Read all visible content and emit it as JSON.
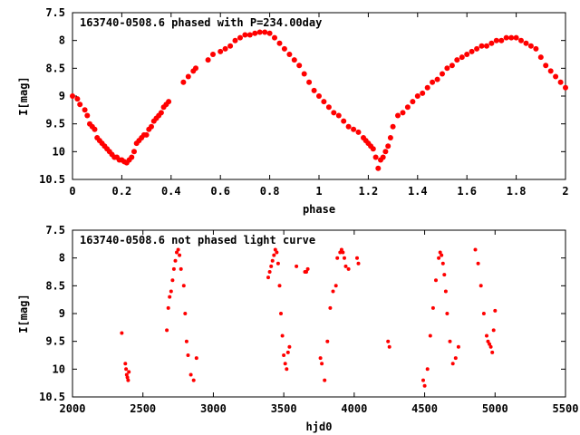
{
  "chart_data": [
    {
      "type": "scatter",
      "title": "163740-0508.6 phased with P=234.00day",
      "xlabel": "phase",
      "ylabel": "I[mag]",
      "xlim": [
        0,
        2
      ],
      "ylim": [
        10.5,
        7.5
      ],
      "y_inverted": true,
      "xticks": [
        "0",
        "0.2",
        "0.4",
        "0.6",
        "0.8",
        "1",
        "1.2",
        "1.4",
        "1.6",
        "1.8",
        "2"
      ],
      "yticks": [
        "7.5",
        "8",
        "8.5",
        "9",
        "9.5",
        "10",
        "10.5"
      ],
      "grid": false,
      "series": [
        {
          "color": "#ff0000",
          "x": [
            0.0,
            0.02,
            0.03,
            0.05,
            0.06,
            0.07,
            0.08,
            0.09,
            0.1,
            0.11,
            0.12,
            0.13,
            0.14,
            0.15,
            0.16,
            0.17,
            0.18,
            0.19,
            0.2,
            0.21,
            0.22,
            0.23,
            0.24,
            0.25,
            0.26,
            0.27,
            0.28,
            0.29,
            0.3,
            0.31,
            0.32,
            0.33,
            0.34,
            0.35,
            0.36,
            0.37,
            0.38,
            0.39,
            0.45,
            0.47,
            0.49,
            0.5,
            0.55,
            0.57,
            0.6,
            0.62,
            0.64,
            0.66,
            0.68,
            0.7,
            0.72,
            0.74,
            0.76,
            0.78,
            0.8,
            0.82,
            0.84,
            0.86,
            0.88,
            0.9,
            0.92,
            0.94,
            0.96,
            0.98,
            1.0,
            1.02,
            1.04,
            1.06,
            1.08,
            1.1,
            1.12,
            1.14,
            1.16,
            1.18,
            1.19,
            1.2,
            1.21,
            1.22,
            1.23,
            1.24,
            1.25,
            1.26,
            1.27,
            1.28,
            1.29,
            1.3,
            1.32,
            1.34,
            1.36,
            1.38,
            1.4,
            1.42,
            1.44,
            1.46,
            1.48,
            1.5,
            1.52,
            1.54,
            1.56,
            1.58,
            1.6,
            1.62,
            1.64,
            1.66,
            1.68,
            1.7,
            1.72,
            1.74,
            1.76,
            1.78,
            1.8,
            1.82,
            1.84,
            1.86,
            1.88,
            1.9,
            1.92,
            1.94,
            1.96,
            1.98,
            2.0
          ],
          "y": [
            9.0,
            9.05,
            9.15,
            9.25,
            9.35,
            9.5,
            9.55,
            9.6,
            9.75,
            9.8,
            9.85,
            9.9,
            9.95,
            10.0,
            10.05,
            10.1,
            10.1,
            10.15,
            10.15,
            10.18,
            10.2,
            10.15,
            10.1,
            10.0,
            9.85,
            9.8,
            9.75,
            9.7,
            9.7,
            9.6,
            9.55,
            9.45,
            9.4,
            9.35,
            9.3,
            9.2,
            9.15,
            9.1,
            8.75,
            8.65,
            8.55,
            8.5,
            8.35,
            8.25,
            8.2,
            8.15,
            8.1,
            8.0,
            7.95,
            7.9,
            7.9,
            7.87,
            7.85,
            7.85,
            7.87,
            7.95,
            8.05,
            8.15,
            8.25,
            8.35,
            8.45,
            8.6,
            8.75,
            8.9,
            9.0,
            9.1,
            9.2,
            9.3,
            9.35,
            9.45,
            9.55,
            9.6,
            9.65,
            9.75,
            9.8,
            9.85,
            9.9,
            9.95,
            10.1,
            10.3,
            10.15,
            10.1,
            10.0,
            9.9,
            9.75,
            9.55,
            9.35,
            9.3,
            9.2,
            9.1,
            9.0,
            8.95,
            8.85,
            8.75,
            8.7,
            8.6,
            8.5,
            8.45,
            8.35,
            8.3,
            8.25,
            8.2,
            8.15,
            8.1,
            8.1,
            8.05,
            8.0,
            8.0,
            7.95,
            7.95,
            7.95,
            8.0,
            8.05,
            8.1,
            8.15,
            8.3,
            8.45,
            8.55,
            8.65,
            8.75,
            8.85
          ]
        }
      ]
    },
    {
      "type": "scatter",
      "title": "163740-0508.6 not phased light curve",
      "xlabel": "hjd0",
      "ylabel": "I[mag]",
      "xlim": [
        2000,
        5500
      ],
      "ylim": [
        10.5,
        7.5
      ],
      "y_inverted": true,
      "xticks": [
        "2000",
        "2500",
        "3000",
        "3500",
        "4000",
        "4500",
        "5000",
        "5500"
      ],
      "yticks": [
        "7.5",
        "8",
        "8.5",
        "9",
        "9.5",
        "10",
        "10.5"
      ],
      "grid": false,
      "series": [
        {
          "color": "#ff0000",
          "x": [
            2350,
            2375,
            2380,
            2385,
            2390,
            2395,
            2400,
            2670,
            2680,
            2690,
            2700,
            2710,
            2720,
            2730,
            2740,
            2750,
            2760,
            2770,
            2790,
            2800,
            2810,
            2820,
            2840,
            2860,
            2880,
            3390,
            3400,
            3410,
            3420,
            3430,
            3440,
            3450,
            3460,
            3470,
            3480,
            3490,
            3500,
            3510,
            3520,
            3530,
            3540,
            3590,
            3650,
            3660,
            3670,
            3760,
            3770,
            3790,
            3810,
            3830,
            3850,
            3870,
            3880,
            3900,
            3910,
            3920,
            3930,
            3940,
            3960,
            4020,
            4030,
            4240,
            4250,
            4490,
            4500,
            4520,
            4540,
            4560,
            4580,
            4600,
            4610,
            4620,
            4630,
            4640,
            4650,
            4660,
            4680,
            4700,
            4720,
            4740,
            4860,
            4880,
            4900,
            4920,
            4940,
            4950,
            4960,
            4970,
            4980,
            4990,
            5000
          ],
          "y": [
            9.35,
            9.9,
            10.0,
            10.1,
            10.15,
            10.2,
            10.05,
            9.3,
            8.9,
            8.7,
            8.6,
            8.4,
            8.2,
            8.05,
            7.9,
            7.85,
            7.95,
            8.2,
            8.5,
            9.0,
            9.5,
            9.75,
            10.1,
            10.2,
            9.8,
            8.35,
            8.25,
            8.15,
            8.05,
            7.95,
            7.85,
            7.9,
            8.1,
            8.5,
            9.0,
            9.4,
            9.75,
            9.9,
            10.0,
            9.7,
            9.6,
            8.15,
            8.25,
            8.25,
            8.2,
            9.8,
            9.9,
            10.2,
            9.5,
            8.9,
            8.6,
            8.5,
            8.0,
            7.9,
            7.85,
            7.9,
            8.0,
            8.15,
            8.2,
            8.0,
            8.1,
            9.5,
            9.6,
            10.2,
            10.3,
            10.0,
            9.4,
            8.9,
            8.4,
            8.0,
            7.9,
            7.95,
            8.1,
            8.3,
            8.6,
            9.0,
            9.5,
            9.9,
            9.8,
            9.6,
            7.85,
            8.1,
            8.5,
            9.0,
            9.4,
            9.5,
            9.55,
            9.6,
            9.7,
            9.3,
            8.95
          ]
        }
      ]
    }
  ]
}
